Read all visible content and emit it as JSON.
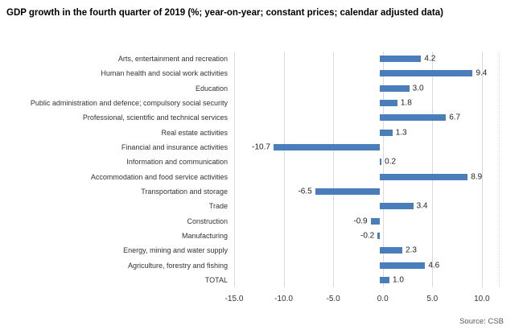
{
  "page": {
    "title": "GDP growth in the fourth quarter of 2019 (%; year-on-year; constant prices; calendar adjusted data)",
    "source": "Source: CSB"
  },
  "colors": {
    "bar": "#4a7ebb",
    "gridline": "#d9d9d9",
    "plot_border": "#d9d9d9",
    "category_text": "#333333",
    "value_text": "#1f1f1f",
    "axis_text": "#333333",
    "title_text": "#000000",
    "source_text": "#595959",
    "background": "#ffffff"
  },
  "chart_data": {
    "type": "bar",
    "orientation": "horizontal",
    "title": "GDP growth in the fourth quarter of 2019 (%; year-on-year; constant prices; calendar adjusted data)",
    "categories": [
      "Arts, entertainment and recreation",
      "Human health and social work activities",
      "Education",
      "Public administration and defence; compulsory social security",
      "Professional, scientific and technical services",
      "Real estate activities",
      "Financial and insurance activities",
      "Information and communication",
      "Accommodation and food service activities",
      "Transportation and storage",
      "Trade",
      "Construction",
      "Manufacturing",
      "Energy, mining and water supply",
      "Agriculture, forestry and fishing",
      "TOTAL"
    ],
    "values": [
      4.2,
      9.4,
      3.0,
      1.8,
      6.7,
      1.3,
      -10.7,
      0.2,
      8.9,
      -6.5,
      3.4,
      -0.9,
      -0.2,
      2.3,
      4.6,
      1.0
    ],
    "value_labels": [
      "4.2",
      "9.4",
      "3.0",
      "1.8",
      "6.7",
      "1.3",
      "-10.7",
      "0.2",
      "8.9",
      "-6.5",
      "3.4",
      "-0.9",
      "-0.2",
      "2.3",
      "4.6",
      "1.0"
    ],
    "xlabel": "",
    "ylabel": "",
    "xlim": [
      -15.0,
      11.8
    ],
    "xticks": [
      -15.0,
      -10.0,
      -5.0,
      0.0,
      5.0,
      10.0
    ],
    "xtick_labels": [
      "-15.0",
      "-10.0",
      "-5.0",
      "0.0",
      "5.0",
      "10.0"
    ],
    "grid": "vertical",
    "legend": false,
    "data_labels": true,
    "source": "Source: CSB"
  }
}
